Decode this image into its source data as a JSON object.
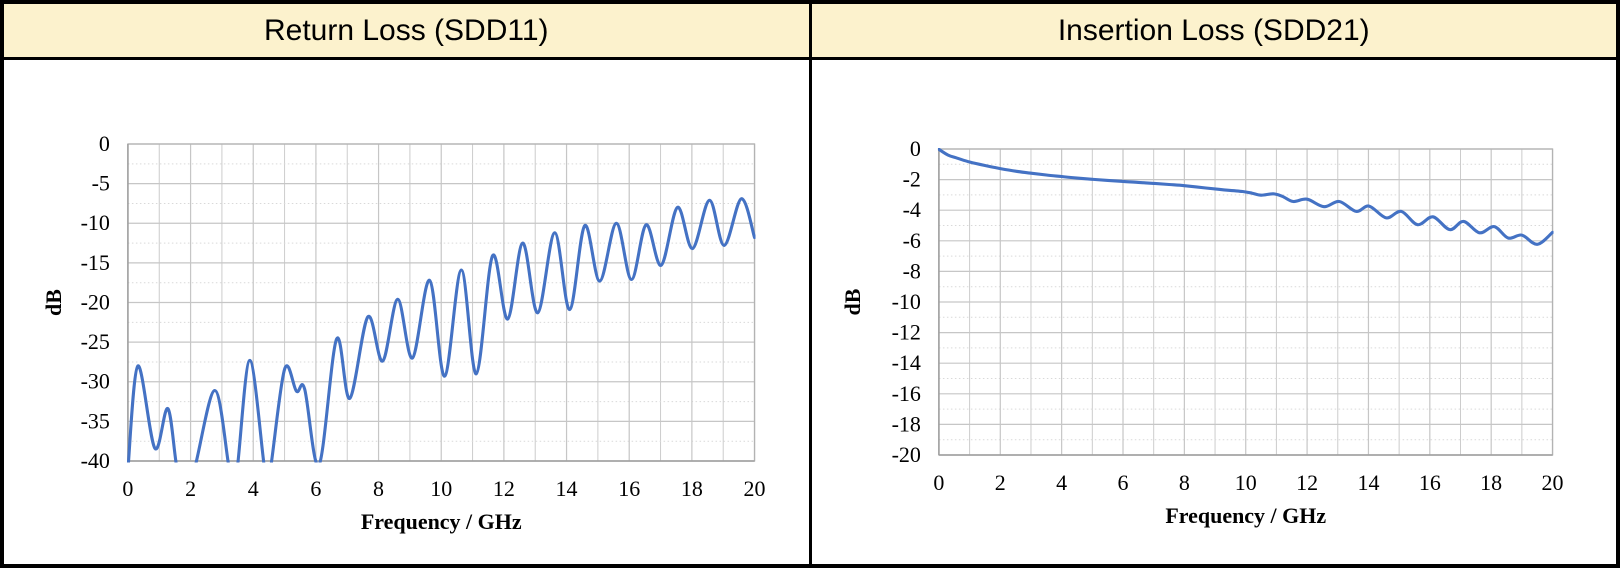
{
  "header_row": {
    "cells": [
      {
        "label": "Return Loss (SDD11)"
      },
      {
        "label": "Insertion Loss (SDD21)"
      }
    ]
  },
  "colors": {
    "header_bg": "#fcf2cd",
    "table_border": "#000000",
    "line": "#4472c4",
    "grid_major": "#c6c6c6",
    "grid_minor_x": "#cccccc",
    "grid_minor_y": "#d9d9d9",
    "plot_border": "#b3b3b3",
    "axis_line": "#9f9f9f",
    "text": "#000000"
  },
  "chart_data": [
    {
      "type": "line",
      "title": "Return Loss (SDD11)",
      "xlabel": "Frequency / GHz",
      "ylabel": "dB",
      "xlim": [
        0,
        20
      ],
      "ylim": [
        -40,
        0
      ],
      "x_ticks": [
        0,
        2,
        4,
        6,
        8,
        10,
        12,
        14,
        16,
        18,
        20
      ],
      "y_ticks": [
        0,
        -5,
        -10,
        -15,
        -20,
        -25,
        -30,
        -35,
        -40
      ],
      "x_minor_step": 1,
      "y_minor_step": 2.5,
      "grid": true,
      "legend": false,
      "series": [
        {
          "name": "SDD11",
          "points": [
            [
              0.0,
              -41.0
            ],
            [
              0.32,
              -28.0
            ],
            [
              0.86,
              -38.4
            ],
            [
              1.28,
              -33.4
            ],
            [
              1.62,
              -42.0
            ],
            [
              2.05,
              -42.0
            ],
            [
              2.77,
              -31.1
            ],
            [
              3.26,
              -41.5
            ],
            [
              3.47,
              -41.5
            ],
            [
              3.89,
              -27.3
            ],
            [
              4.38,
              -41.5
            ],
            [
              4.53,
              -41.5
            ],
            [
              5.0,
              -28.4
            ],
            [
              5.38,
              -31.2
            ],
            [
              5.64,
              -30.9
            ],
            [
              6.1,
              -40.5
            ],
            [
              6.66,
              -24.6
            ],
            [
              7.08,
              -32.1
            ],
            [
              7.66,
              -21.8
            ],
            [
              8.13,
              -27.4
            ],
            [
              8.61,
              -19.6
            ],
            [
              9.08,
              -27.0
            ],
            [
              9.63,
              -17.2
            ],
            [
              10.11,
              -29.3
            ],
            [
              10.64,
              -15.9
            ],
            [
              11.12,
              -29.0
            ],
            [
              11.64,
              -14.1
            ],
            [
              12.12,
              -22.1
            ],
            [
              12.6,
              -12.5
            ],
            [
              13.08,
              -21.3
            ],
            [
              13.62,
              -11.2
            ],
            [
              14.1,
              -20.9
            ],
            [
              14.58,
              -10.3
            ],
            [
              15.06,
              -17.3
            ],
            [
              15.59,
              -10.0
            ],
            [
              16.07,
              -17.1
            ],
            [
              16.54,
              -10.2
            ],
            [
              17.02,
              -15.3
            ],
            [
              17.54,
              -8.0
            ],
            [
              18.02,
              -13.2
            ],
            [
              18.56,
              -7.1
            ],
            [
              19.03,
              -12.8
            ],
            [
              19.58,
              -6.9
            ],
            [
              20.0,
              -11.8
            ]
          ]
        }
      ]
    },
    {
      "type": "line",
      "title": "Insertion Loss (SDD21)",
      "xlabel": "Frequency / GHz",
      "ylabel": "dB",
      "xlim": [
        0,
        20
      ],
      "ylim": [
        -20,
        0
      ],
      "x_ticks": [
        0,
        2,
        4,
        6,
        8,
        10,
        12,
        14,
        16,
        18,
        20
      ],
      "y_ticks": [
        0,
        -2,
        -4,
        -6,
        -8,
        -10,
        -12,
        -14,
        -16,
        -18,
        -20
      ],
      "x_minor_step": 1,
      "y_minor_step": 1,
      "grid": true,
      "legend": false,
      "series": [
        {
          "name": "SDD21",
          "points": [
            [
              0.0,
              -0.02
            ],
            [
              0.3,
              -0.4
            ],
            [
              0.6,
              -0.6
            ],
            [
              1.0,
              -0.85
            ],
            [
              1.5,
              -1.08
            ],
            [
              2.0,
              -1.28
            ],
            [
              2.5,
              -1.45
            ],
            [
              3.0,
              -1.58
            ],
            [
              3.5,
              -1.7
            ],
            [
              4.0,
              -1.8
            ],
            [
              4.5,
              -1.9
            ],
            [
              5.0,
              -1.98
            ],
            [
              5.5,
              -2.05
            ],
            [
              6.0,
              -2.12
            ],
            [
              6.5,
              -2.18
            ],
            [
              7.0,
              -2.25
            ],
            [
              7.5,
              -2.32
            ],
            [
              8.0,
              -2.4
            ],
            [
              8.7,
              -2.55
            ],
            [
              9.3,
              -2.67
            ],
            [
              9.9,
              -2.78
            ],
            [
              10.2,
              -2.88
            ],
            [
              10.5,
              -3.02
            ],
            [
              10.9,
              -2.93
            ],
            [
              11.2,
              -3.1
            ],
            [
              11.55,
              -3.43
            ],
            [
              12.0,
              -3.28
            ],
            [
              12.55,
              -3.77
            ],
            [
              13.05,
              -3.43
            ],
            [
              13.6,
              -4.08
            ],
            [
              14.02,
              -3.73
            ],
            [
              14.58,
              -4.5
            ],
            [
              15.07,
              -4.08
            ],
            [
              15.6,
              -4.95
            ],
            [
              16.1,
              -4.43
            ],
            [
              16.65,
              -5.27
            ],
            [
              17.1,
              -4.73
            ],
            [
              17.62,
              -5.48
            ],
            [
              18.1,
              -5.07
            ],
            [
              18.55,
              -5.82
            ],
            [
              19.0,
              -5.63
            ],
            [
              19.5,
              -6.23
            ],
            [
              20.0,
              -5.45
            ]
          ]
        }
      ]
    }
  ]
}
